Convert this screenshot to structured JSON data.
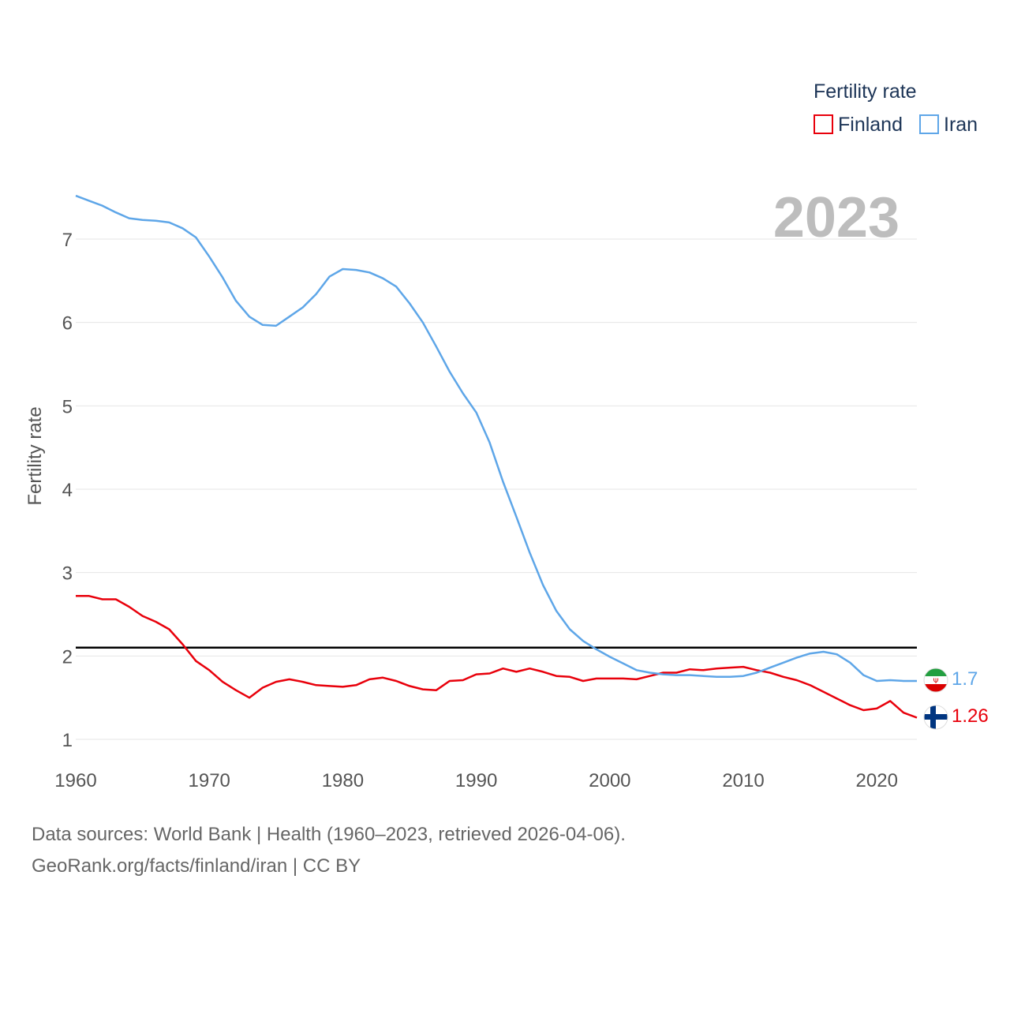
{
  "chart_data": {
    "type": "line",
    "title": "",
    "xlabel": "",
    "ylabel": "Fertility rate",
    "xlim": [
      1960,
      2023
    ],
    "ylim": [
      0.6,
      7.7
    ],
    "xticks": [
      1960,
      1970,
      1980,
      1990,
      2000,
      2010,
      2020
    ],
    "yticks": [
      1,
      2,
      3,
      4,
      5,
      6,
      7
    ],
    "grid": true,
    "year_display": "2023",
    "reference_line": {
      "y": 2.1,
      "color": "#000000"
    },
    "legend": {
      "title": "Fertility rate",
      "position": "top-right"
    },
    "x": [
      1960,
      1961,
      1962,
      1963,
      1964,
      1965,
      1966,
      1967,
      1968,
      1969,
      1970,
      1971,
      1972,
      1973,
      1974,
      1975,
      1976,
      1977,
      1978,
      1979,
      1980,
      1981,
      1982,
      1983,
      1984,
      1985,
      1986,
      1987,
      1988,
      1989,
      1990,
      1991,
      1992,
      1993,
      1994,
      1995,
      1996,
      1997,
      1998,
      1999,
      2000,
      2001,
      2002,
      2003,
      2004,
      2005,
      2006,
      2007,
      2008,
      2009,
      2010,
      2011,
      2012,
      2013,
      2014,
      2015,
      2016,
      2017,
      2018,
      2019,
      2020,
      2021,
      2022,
      2023
    ],
    "series": [
      {
        "name": "Finland",
        "color": "#e8000b",
        "end_label": "1.26",
        "values": [
          2.72,
          2.72,
          2.68,
          2.68,
          2.59,
          2.48,
          2.41,
          2.32,
          2.14,
          1.94,
          1.83,
          1.69,
          1.59,
          1.5,
          1.62,
          1.69,
          1.72,
          1.69,
          1.65,
          1.64,
          1.63,
          1.65,
          1.72,
          1.74,
          1.7,
          1.64,
          1.6,
          1.59,
          1.7,
          1.71,
          1.78,
          1.79,
          1.85,
          1.81,
          1.85,
          1.81,
          1.76,
          1.75,
          1.7,
          1.73,
          1.73,
          1.73,
          1.72,
          1.76,
          1.8,
          1.8,
          1.84,
          1.83,
          1.85,
          1.86,
          1.87,
          1.83,
          1.8,
          1.75,
          1.71,
          1.65,
          1.57,
          1.49,
          1.41,
          1.35,
          1.37,
          1.46,
          1.32,
          1.26
        ]
      },
      {
        "name": "Iran",
        "color": "#5ea6e8",
        "end_label": "1.7",
        "values": [
          7.52,
          7.46,
          7.4,
          7.32,
          7.25,
          7.23,
          7.22,
          7.2,
          7.13,
          7.02,
          6.79,
          6.54,
          6.26,
          6.07,
          5.97,
          5.96,
          6.07,
          6.18,
          6.34,
          6.55,
          6.64,
          6.63,
          6.6,
          6.53,
          6.43,
          6.23,
          6.0,
          5.71,
          5.41,
          5.15,
          4.92,
          4.56,
          4.09,
          3.67,
          3.24,
          2.85,
          2.54,
          2.32,
          2.18,
          2.08,
          1.99,
          1.91,
          1.83,
          1.8,
          1.78,
          1.77,
          1.77,
          1.76,
          1.75,
          1.75,
          1.76,
          1.8,
          1.86,
          1.92,
          1.98,
          2.03,
          2.05,
          2.02,
          1.92,
          1.77,
          1.7,
          1.71,
          1.7,
          1.7
        ]
      }
    ]
  },
  "footer": {
    "line1": "Data sources: World Bank | Health (1960–2023, retrieved 2026-04-06).",
    "line2": "GeoRank.org/facts/finland/iran | CC BY"
  }
}
